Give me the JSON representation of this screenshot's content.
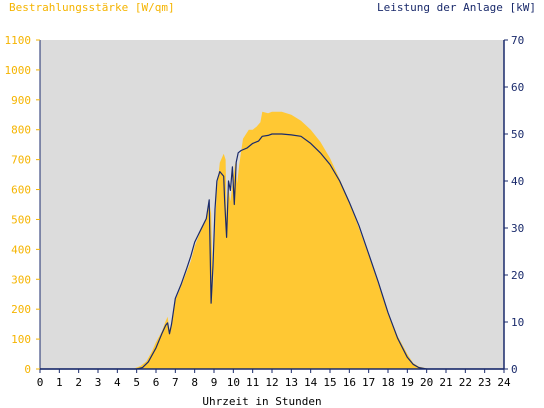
{
  "colors": {
    "plot_bg": "#dcdcdc",
    "irradiance": "#ffc833",
    "power": "#1a2a6b",
    "left_axis": "#f5b400",
    "right_axis": "#1a2a6b"
  },
  "chart_data": {
    "type": "area",
    "title_left": "Bestrahlungsstärke [W/qm]",
    "title_right": "Leistung der Anlage [kW]",
    "xlabel": "Uhrzeit in Stunden",
    "xlim": [
      0,
      24
    ],
    "ylim_left": [
      0,
      1100
    ],
    "ylim_right": [
      0,
      70
    ],
    "x_ticks": [
      "0",
      "1",
      "2",
      "3",
      "4",
      "5",
      "6",
      "7",
      "8",
      "9",
      "10",
      "11",
      "12",
      "13",
      "14",
      "15",
      "16",
      "17",
      "18",
      "19",
      "20",
      "21",
      "22",
      "23",
      "24"
    ],
    "y_left_ticks": [
      "0",
      "100",
      "200",
      "300",
      "400",
      "500",
      "600",
      "700",
      "800",
      "900",
      "1000",
      "1100"
    ],
    "y_right_ticks": [
      "0",
      "10",
      "20",
      "30",
      "40",
      "50",
      "60",
      "70"
    ],
    "grid": false,
    "series": [
      {
        "name": "Bestrahlungsstärke [W/qm]",
        "axis": "left",
        "style": "area",
        "x": [
          0,
          4.8,
          5.2,
          5.5,
          5.8,
          6.0,
          6.3,
          6.5,
          6.6,
          6.7,
          6.8,
          7.0,
          7.2,
          7.5,
          7.8,
          8.0,
          8.3,
          8.6,
          8.75,
          8.85,
          8.95,
          9.05,
          9.15,
          9.3,
          9.5,
          9.6,
          9.65,
          9.75,
          9.85,
          10.0,
          10.1,
          10.2,
          10.3,
          10.5,
          10.8,
          11.0,
          11.2,
          11.4,
          11.5,
          11.8,
          12.0,
          12.5,
          13.0,
          13.5,
          14.0,
          14.5,
          15.0,
          15.5,
          16.0,
          16.5,
          17.0,
          17.5,
          18.0,
          18.5,
          19.0,
          19.3,
          19.6,
          20.0,
          20.2,
          20.5,
          24
        ],
        "y": [
          0,
          0,
          10,
          25,
          60,
          90,
          125,
          160,
          175,
          130,
          150,
          230,
          260,
          310,
          360,
          410,
          460,
          500,
          560,
          520,
          260,
          480,
          600,
          690,
          720,
          700,
          500,
          600,
          560,
          640,
          690,
          620,
          680,
          770,
          800,
          800,
          810,
          825,
          860,
          855,
          860,
          860,
          850,
          830,
          800,
          760,
          705,
          635,
          560,
          470,
          380,
          285,
          190,
          110,
          50,
          20,
          8,
          2,
          0,
          0,
          0
        ]
      },
      {
        "name": "Leistung der Anlage [kW]",
        "axis": "right",
        "style": "line",
        "x": [
          0,
          5.0,
          5.3,
          5.6,
          6.0,
          6.3,
          6.5,
          6.6,
          6.7,
          6.8,
          7.0,
          7.3,
          7.6,
          7.8,
          8.0,
          8.3,
          8.6,
          8.75,
          8.85,
          8.95,
          9.05,
          9.15,
          9.3,
          9.5,
          9.55,
          9.65,
          9.75,
          9.85,
          9.95,
          10.05,
          10.15,
          10.25,
          10.4,
          10.7,
          11.0,
          11.3,
          11.5,
          11.8,
          12.0,
          12.5,
          13.0,
          13.5,
          14.0,
          14.5,
          15.0,
          15.5,
          16.0,
          16.5,
          17.0,
          17.5,
          18.0,
          18.5,
          19.0,
          19.3,
          19.6,
          20.0,
          20.2,
          20.5,
          24
        ],
        "y": [
          0,
          0,
          0.3,
          1.5,
          4.5,
          7.5,
          9.3,
          9.8,
          7.5,
          9.5,
          15,
          18,
          21.5,
          24,
          27,
          29.5,
          32,
          36,
          14,
          22,
          34,
          40,
          42,
          41,
          36,
          28,
          40,
          38,
          43,
          35,
          44,
          46,
          46.5,
          47,
          48,
          48.5,
          49.5,
          49.7,
          50,
          50,
          49.8,
          49.5,
          48,
          46,
          43.5,
          40,
          35.5,
          30.5,
          24.5,
          18.5,
          12,
          6.5,
          2.5,
          1,
          0.3,
          0,
          0,
          0,
          0
        ]
      }
    ]
  }
}
